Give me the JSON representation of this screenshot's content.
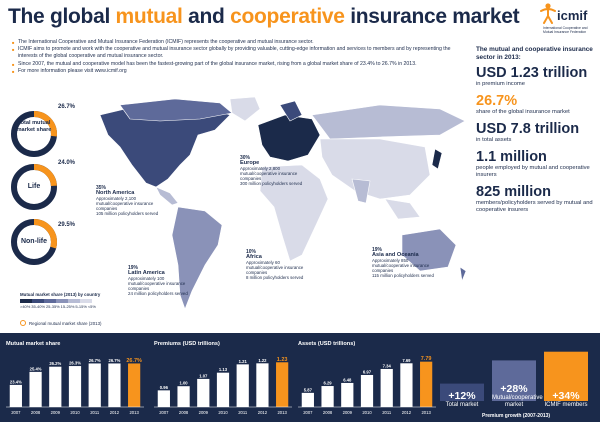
{
  "title": {
    "part1": "The global ",
    "part2": "mutual",
    "part3": " and ",
    "part4": "cooperative",
    "part5": " insurance market"
  },
  "logo": {
    "word": "icmif",
    "sub": "International Cooperative and Mutual Insurance Federation"
  },
  "intro": [
    "The International Cooperative and Mutual Insurance Federation (ICMIF) represents the cooperative and mutual insurance sector.",
    "ICMIF aims to promote and work with the cooperative and mutual insurance sector globally by providing valuable, cutting-edge information and services to members and by representing the interests of the global cooperative and mutual insurance sector.",
    "Since 2007, the mutual and cooperative model has been the fastest-growing part of the global insurance market, rising from a global market share of 23.4% to 26.7% in 2013.",
    "For more information please visit www.icmif.org"
  ],
  "donuts": [
    {
      "label": "Total mutual market share",
      "pct": "26.7%",
      "value": 26.7
    },
    {
      "label": "Life",
      "pct": "24.0%",
      "value": 24.0
    },
    {
      "label": "Non-life",
      "pct": "29.5%",
      "value": 29.5
    }
  ],
  "regions": {
    "north_america": {
      "pct": "35%",
      "value": 35,
      "name": "North America",
      "l1": "Approximately 2,100 mutual/cooperative insurance companies",
      "l2": "105 million policyholders served"
    },
    "europe": {
      "pct": "30%",
      "value": 30,
      "name": "Europe",
      "l1": "Approximately 2,800 mutual/cooperative insurance companies",
      "l2": "300 million policyholders served"
    },
    "latin_america": {
      "pct": "19%",
      "value": 19,
      "name": "Latin America",
      "l1": "Approximately 100 mutual/cooperative insurance companies",
      "l2": "24 million policyholders served"
    },
    "africa": {
      "pct": "10%",
      "value": 10,
      "name": "Africa",
      "l1": "Approximately 60 mutual/cooperative insurance companies",
      "l2": "8 million policyholders served"
    },
    "asia_oceania": {
      "pct": "19%",
      "value": 19,
      "name": "Asia and Oceania",
      "l1": "Approximately 850 mutual/cooperative insurance companies",
      "l2": "115 million policyholders served"
    }
  },
  "legend": {
    "title": "Mutual market share (2013) by country",
    "ticks": [
      ">40%",
      "35-40%",
      "25-35%",
      "15-25%",
      "5-15%",
      "<5%"
    ],
    "colors": [
      "#1b2a4a",
      "#3b4a7a",
      "#5e6a9a",
      "#8a92b8",
      "#b7bcd4",
      "#d9dbe8"
    ],
    "regional": "Regional mutual market share (2013)"
  },
  "panel": {
    "heading": "The mutual and cooperative insurance sector in 2013:",
    "stats": [
      {
        "big": "USD 1.23 trillion",
        "small": "in premium income",
        "color": "navy"
      },
      {
        "big": "26.7%",
        "small": "share of the global insurance market",
        "color": "orange"
      },
      {
        "big": "USD 7.8 trillion",
        "small": "in total assets",
        "color": "navy"
      },
      {
        "big": "1.1 million",
        "small": "people employed by mutual and cooperative insurers",
        "color": "navy"
      },
      {
        "big": "825 million",
        "small": "members/policyholders served by mutual and cooperative insurers",
        "color": "navy"
      }
    ]
  },
  "chart_data": [
    {
      "type": "bar",
      "title": "Mutual market share",
      "categories": [
        "2007",
        "2008",
        "2009",
        "2010",
        "2011",
        "2012",
        "2013"
      ],
      "values": [
        23.4,
        25.4,
        26.2,
        26.3,
        26.7,
        26.7,
        26.7
      ],
      "labels": [
        "23.4%",
        "25.4%",
        "26.2%",
        "26.3%",
        "26.7%",
        "26.7%",
        "26.7%"
      ],
      "ylim": [
        20,
        28
      ]
    },
    {
      "type": "bar",
      "title": "Premiums (USD trillions)",
      "categories": [
        "2007",
        "2008",
        "2009",
        "2010",
        "2011",
        "2012",
        "2013"
      ],
      "values": [
        0.96,
        1.0,
        1.07,
        1.13,
        1.21,
        1.22,
        1.23
      ],
      "labels": [
        "0.96",
        "1.00",
        "1.07",
        "1.13",
        "1.21",
        "1.22",
        "1.23"
      ],
      "ylim": [
        0.8,
        1.3
      ]
    },
    {
      "type": "bar",
      "title": "Assets (USD trillions)",
      "categories": [
        "2007",
        "2008",
        "2009",
        "2010",
        "2011",
        "2012",
        "2013"
      ],
      "values": [
        5.87,
        6.29,
        6.48,
        6.97,
        7.34,
        7.69,
        7.79
      ],
      "labels": [
        "5.87",
        "6.29",
        "6.48",
        "6.97",
        "7.34",
        "7.69",
        "7.79"
      ],
      "ylim": [
        5,
        8.2
      ]
    },
    {
      "type": "bar",
      "title": "Premium growth (2007-2013)",
      "categories": [
        "Total market",
        "Mutual/cooperative market",
        "ICMIF members"
      ],
      "values": [
        12,
        28,
        34
      ],
      "labels": [
        "+12%",
        "+28%",
        "+34%"
      ],
      "ylim": [
        0,
        40
      ]
    }
  ],
  "colors": {
    "navy": "#1b2a4a",
    "orange": "#f7941d",
    "highlight": "#f7941d",
    "bar": "#ffffff"
  }
}
